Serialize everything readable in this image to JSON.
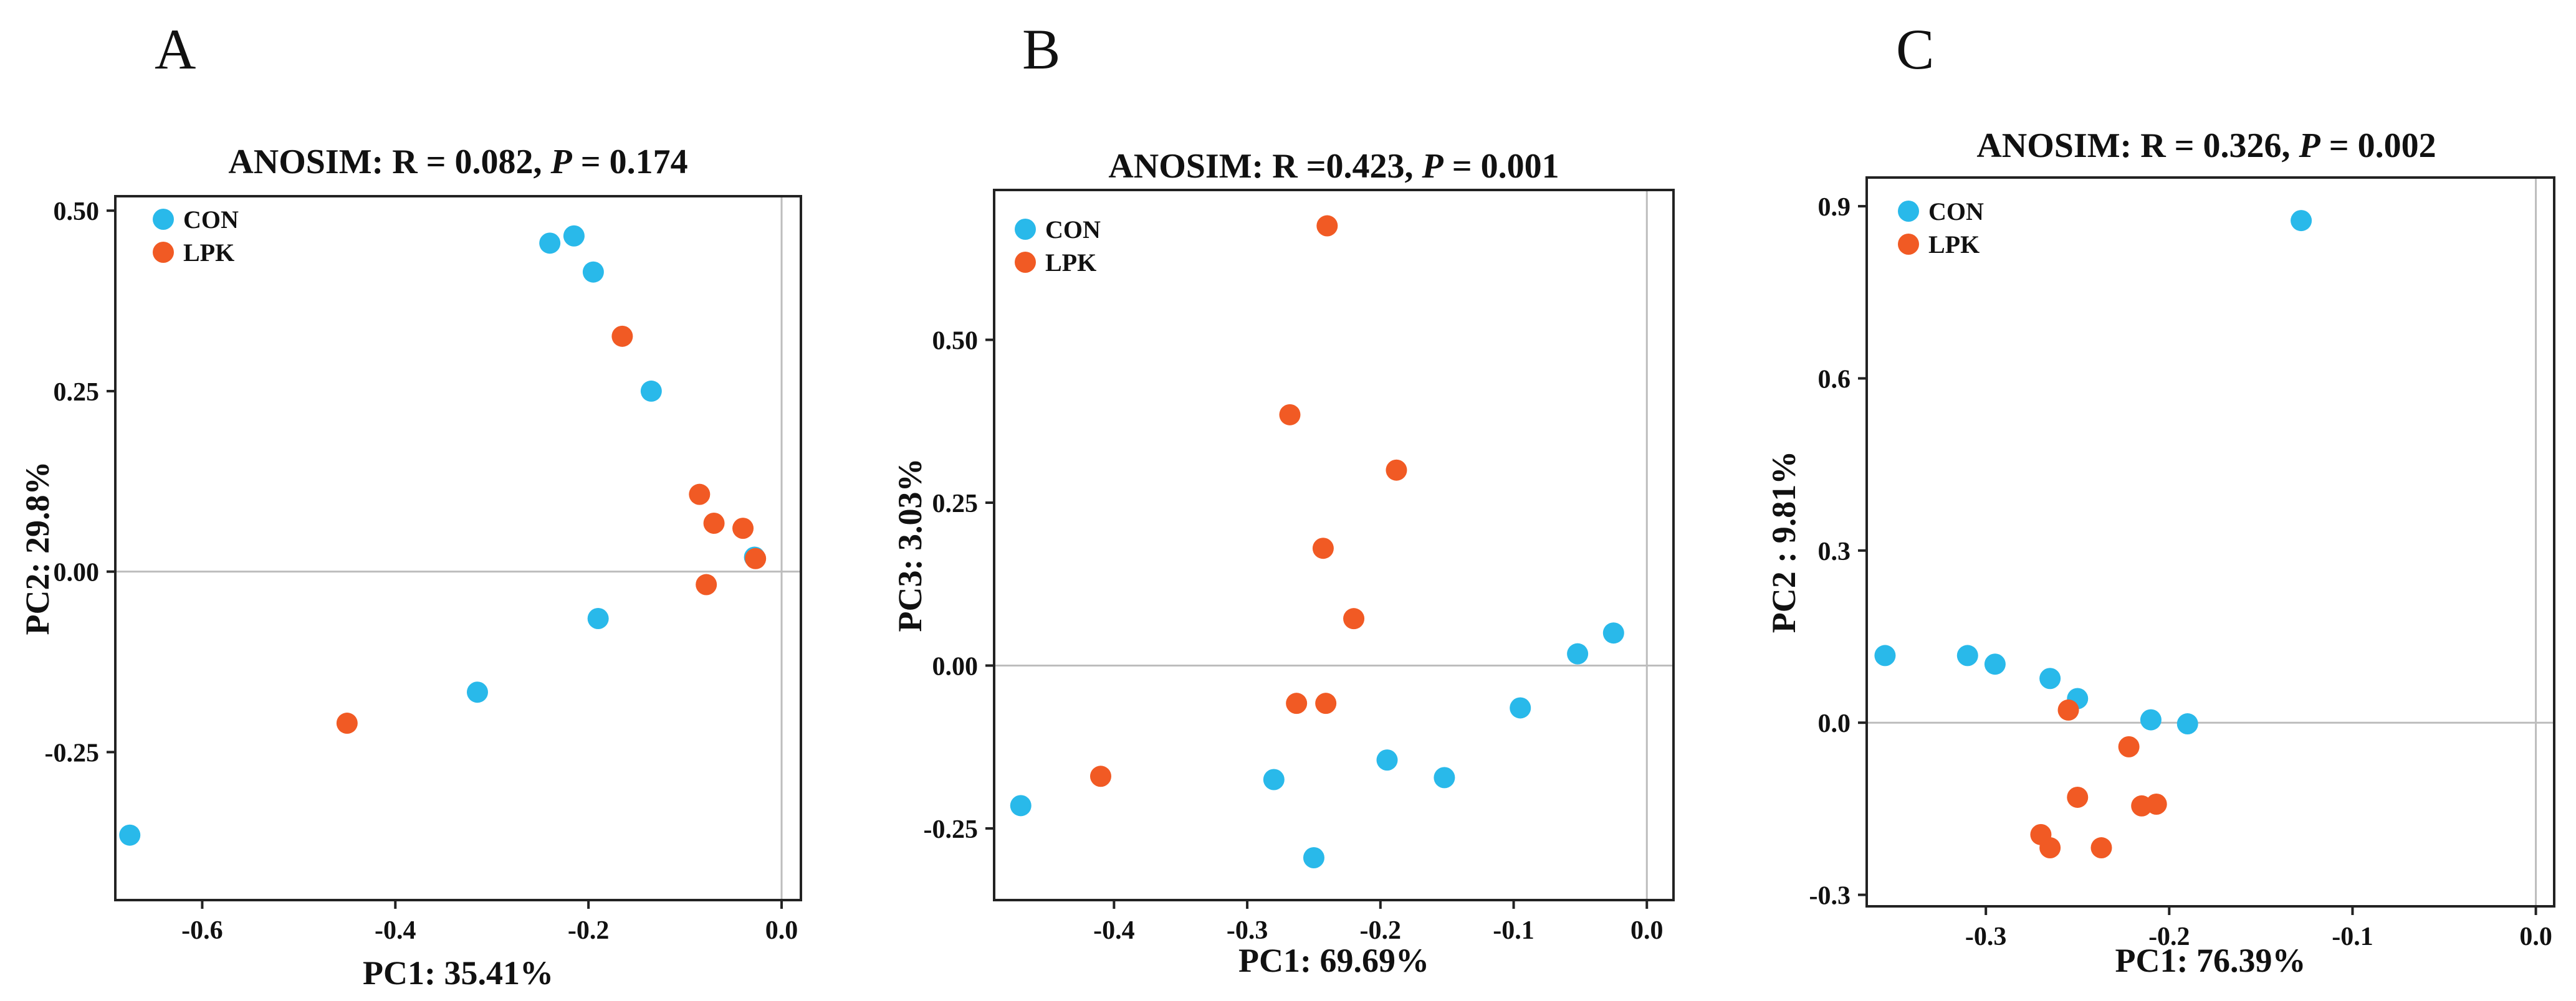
{
  "figure": {
    "panel_labels": [
      "A",
      "B",
      "C"
    ]
  },
  "colors": {
    "CON": "#29b9ea",
    "LPK": "#f15a24",
    "frame": "#222222",
    "refline": "#bdbdbd"
  },
  "chart_data": [
    {
      "type": "scatter",
      "panel": "A",
      "title_prefix": "ANOSIM: R = 0.082,",
      "title_p": "P",
      "title_suffix": " = 0.174",
      "xlabel": "PC1: 35.41%",
      "ylabel": "PC2: 29.8%",
      "xlim": [
        -0.69,
        0.02
      ],
      "ylim": [
        -0.455,
        0.52
      ],
      "xticks": [
        -0.6,
        -0.4,
        -0.2,
        0.0
      ],
      "xtick_labels": [
        "-0.6",
        "-0.4",
        "-0.2",
        "0.0"
      ],
      "yticks": [
        -0.25,
        0.0,
        0.25,
        0.5
      ],
      "ytick_labels": [
        "-0.25",
        "0.00",
        "0.25",
        "0.50"
      ],
      "legend": [
        "CON",
        "LPK"
      ],
      "series": [
        {
          "name": "CON",
          "points": [
            [
              -0.24,
              0.455
            ],
            [
              -0.215,
              0.465
            ],
            [
              -0.195,
              0.415
            ],
            [
              -0.135,
              0.25
            ],
            [
              -0.19,
              -0.065
            ],
            [
              -0.315,
              -0.167
            ],
            [
              -0.675,
              -0.365
            ],
            [
              -0.028,
              0.02
            ]
          ]
        },
        {
          "name": "LPK",
          "points": [
            [
              -0.165,
              0.326
            ],
            [
              -0.085,
              0.107
            ],
            [
              -0.07,
              0.067
            ],
            [
              -0.04,
              0.06
            ],
            [
              -0.027,
              0.018
            ],
            [
              -0.078,
              -0.018
            ],
            [
              -0.45,
              -0.21
            ]
          ]
        }
      ]
    },
    {
      "type": "scatter",
      "panel": "B",
      "title_prefix": "ANOSIM: R =0.423,",
      "title_p": "P",
      "title_suffix": " = 0.001",
      "xlabel": "PC1: 69.69%",
      "ylabel": "PC3: 3.03%",
      "xlim": [
        -0.49,
        0.02
      ],
      "ylim": [
        -0.36,
        0.73
      ],
      "xticks": [
        -0.4,
        -0.3,
        -0.2,
        -0.1,
        0.0
      ],
      "xtick_labels": [
        "-0.4",
        "-0.3",
        "-0.2",
        "-0.1",
        "0.0"
      ],
      "yticks": [
        -0.25,
        0.0,
        0.25,
        0.5
      ],
      "ytick_labels": [
        "-0.25",
        "0.00",
        "0.25",
        "0.50"
      ],
      "legend": [
        "CON",
        "LPK"
      ],
      "series": [
        {
          "name": "CON",
          "points": [
            [
              -0.47,
              -0.215
            ],
            [
              -0.28,
              -0.175
            ],
            [
              -0.25,
              -0.295
            ],
            [
              -0.195,
              -0.145
            ],
            [
              -0.152,
              -0.172
            ],
            [
              -0.095,
              -0.065
            ],
            [
              -0.052,
              0.018
            ],
            [
              -0.025,
              0.05
            ]
          ]
        },
        {
          "name": "LPK",
          "points": [
            [
              -0.24,
              0.675
            ],
            [
              -0.268,
              0.385
            ],
            [
              -0.188,
              0.3
            ],
            [
              -0.243,
              0.18
            ],
            [
              -0.22,
              0.072
            ],
            [
              -0.263,
              -0.058
            ],
            [
              -0.241,
              -0.058
            ],
            [
              -0.41,
              -0.17
            ]
          ]
        }
      ]
    },
    {
      "type": "scatter",
      "panel": "C",
      "title_prefix": "ANOSIM: R = 0.326,",
      "title_p": "P",
      "title_suffix": " = 0.002",
      "xlabel": "PC1: 76.39%",
      "ylabel": "PC2 : 9.81%",
      "xlim": [
        -0.365,
        0.01
      ],
      "ylim": [
        -0.32,
        0.95
      ],
      "xticks": [
        -0.3,
        -0.2,
        -0.1,
        0.0
      ],
      "xtick_labels": [
        "-0.3",
        "-0.2",
        "-0.1",
        "0.0"
      ],
      "yticks": [
        -0.3,
        0.0,
        0.3,
        0.6,
        0.9
      ],
      "ytick_labels": [
        "-0.3",
        "0.0",
        "0.3",
        "0.6",
        "0.9"
      ],
      "legend": [
        "CON",
        "LPK"
      ],
      "series": [
        {
          "name": "CON",
          "points": [
            [
              -0.128,
              0.875
            ],
            [
              -0.355,
              0.117
            ],
            [
              -0.31,
              0.117
            ],
            [
              -0.295,
              0.102
            ],
            [
              -0.265,
              0.077
            ],
            [
              -0.25,
              0.042
            ],
            [
              -0.21,
              0.005
            ],
            [
              -0.19,
              -0.002
            ]
          ]
        },
        {
          "name": "LPK",
          "points": [
            [
              -0.255,
              0.022
            ],
            [
              -0.222,
              -0.042
            ],
            [
              -0.25,
              -0.13
            ],
            [
              -0.215,
              -0.145
            ],
            [
              -0.207,
              -0.142
            ],
            [
              -0.27,
              -0.195
            ],
            [
              -0.265,
              -0.218
            ],
            [
              -0.237,
              -0.218
            ]
          ]
        }
      ]
    }
  ]
}
